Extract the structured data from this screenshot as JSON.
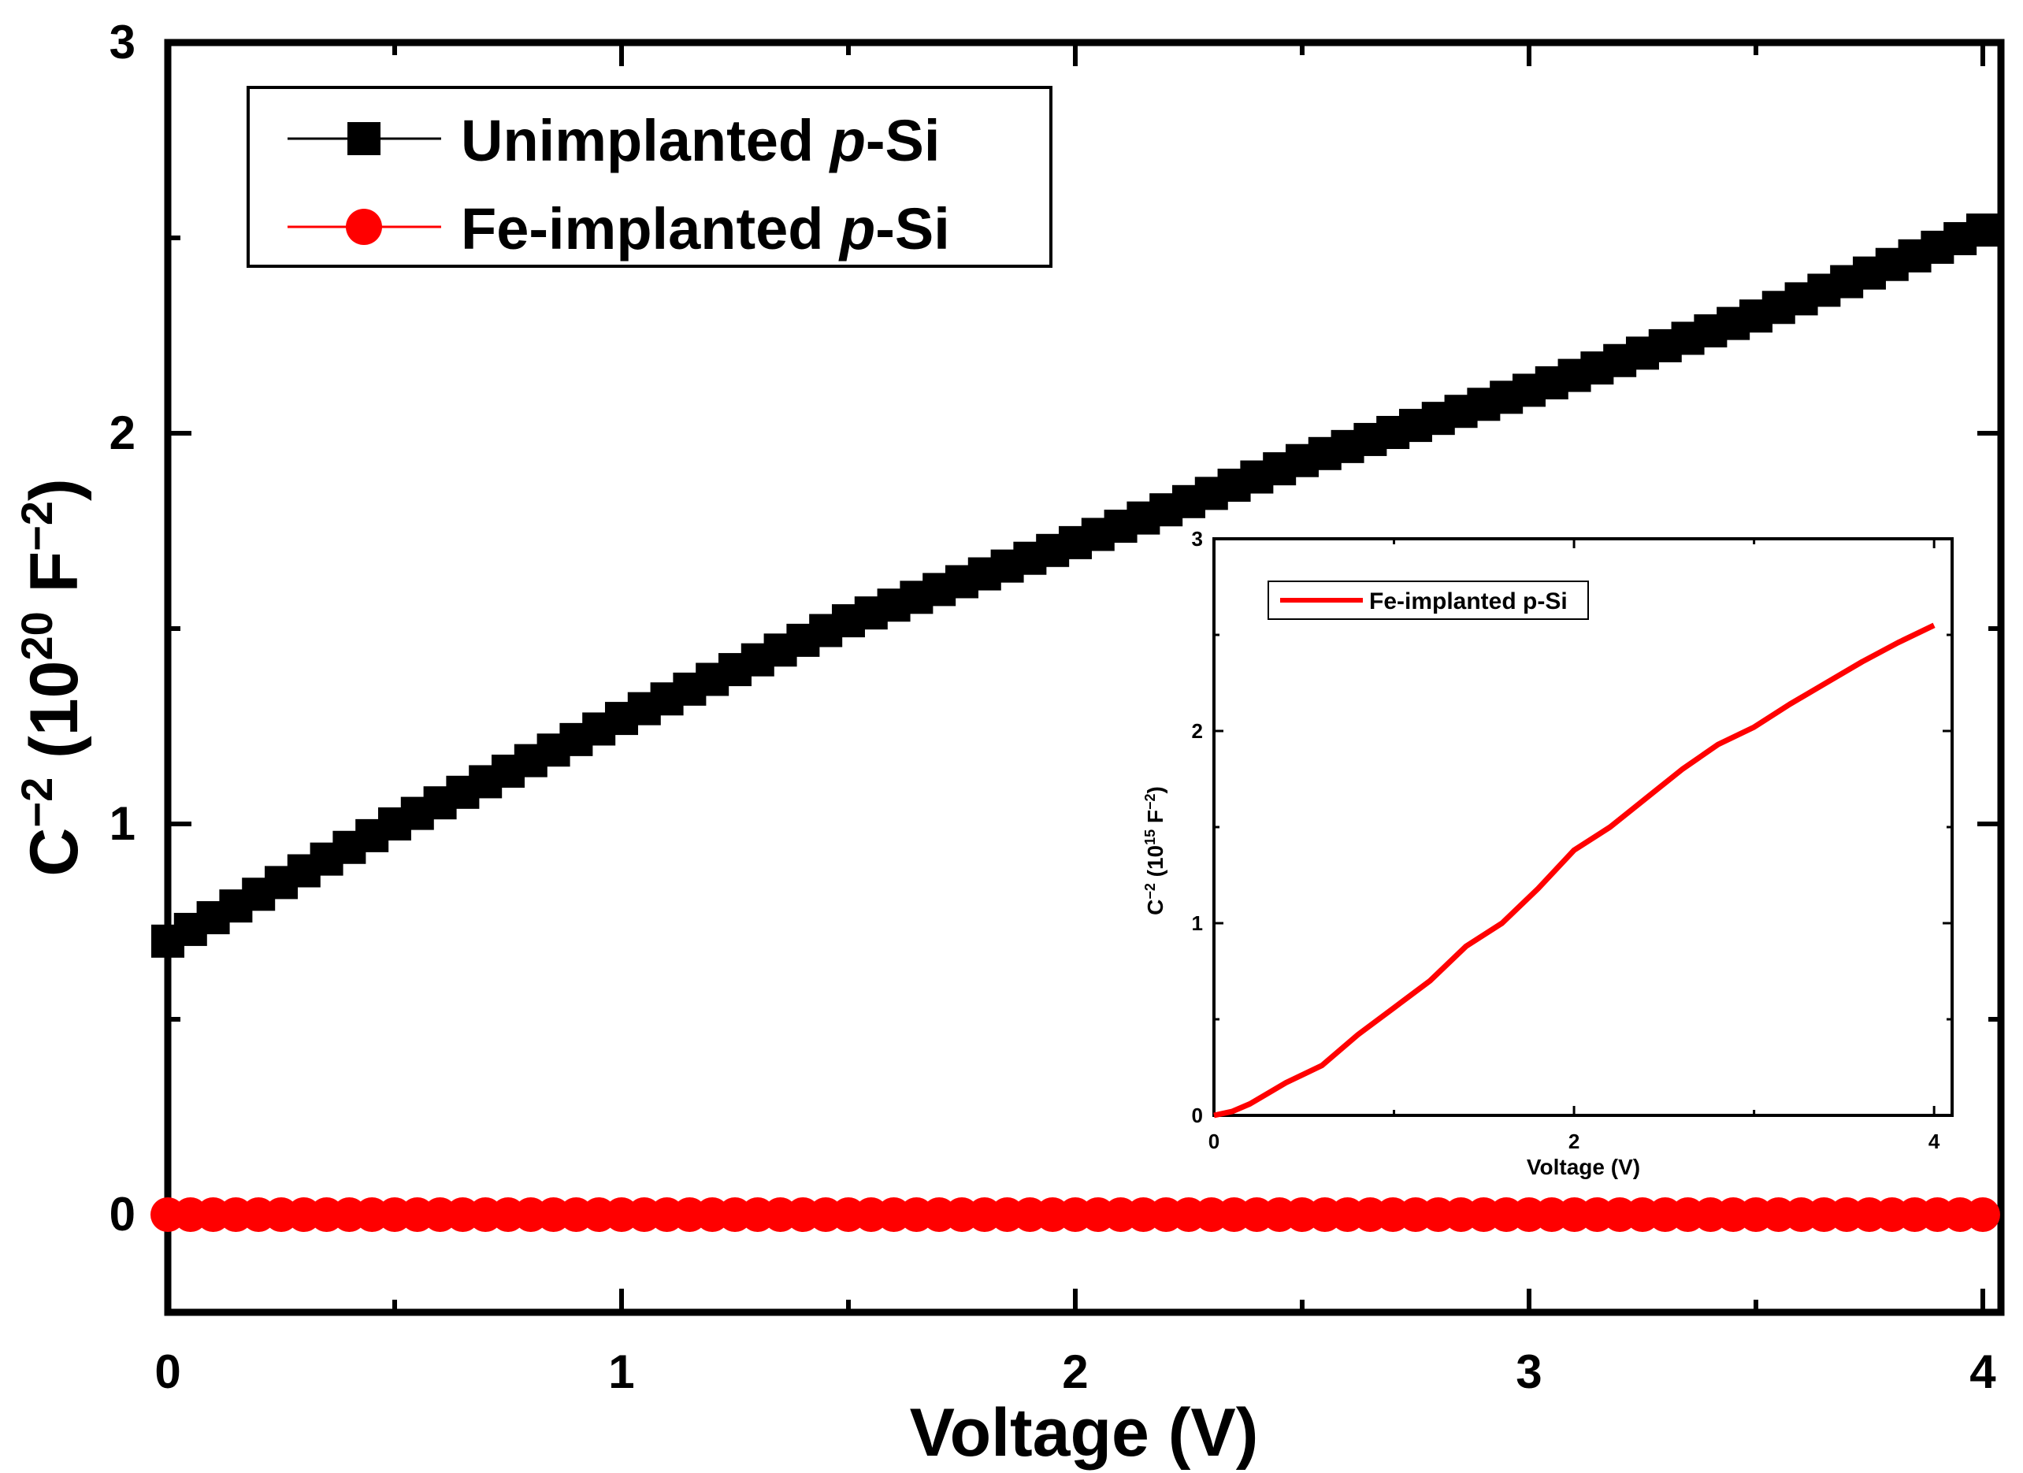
{
  "chart_data": [
    {
      "type": "scatter",
      "role": "main",
      "xlabel": "Voltage (V)",
      "ylabel": {
        "base": "C",
        "exp1": "−2",
        "mid": " (10",
        "exp2": "20",
        "unit": " F",
        "exp3": "−2",
        "close": ")"
      },
      "xlim": [
        0,
        4.04
      ],
      "ylim": [
        -0.25,
        3.0
      ],
      "x_ticks": [
        {
          "value": 0,
          "label": "0"
        },
        {
          "value": 1,
          "label": "1"
        },
        {
          "value": 2,
          "label": "2"
        },
        {
          "value": 3,
          "label": "3"
        },
        {
          "value": 4,
          "label": "4"
        }
      ],
      "y_ticks": [
        {
          "value": 0,
          "label": "0"
        },
        {
          "value": 1,
          "label": "1"
        },
        {
          "value": 2,
          "label": "2"
        },
        {
          "value": 3,
          "label": "3"
        }
      ],
      "legend": [
        {
          "pre": "Unimplanted ",
          "italic": "p",
          "post": "-Si",
          "marker": "square",
          "color": "#000000"
        },
        {
          "pre": "Fe-implanted ",
          "italic": "p",
          "post": "-Si",
          "marker": "circle",
          "color": "#ff0000"
        }
      ],
      "series": [
        {
          "name": "Unimplanted p-Si",
          "color": "#000000",
          "marker": "square",
          "x_start": 0.0,
          "x_step": 0.05,
          "count": 81,
          "curve_points": [
            [
              0.0,
              0.7
            ],
            [
              0.5,
              1.0
            ],
            [
              1.0,
              1.27
            ],
            [
              1.5,
              1.52
            ],
            [
              2.0,
              1.72
            ],
            [
              2.5,
              1.93
            ],
            [
              3.0,
              2.11
            ],
            [
              3.5,
              2.3
            ],
            [
              4.0,
              2.52
            ]
          ]
        },
        {
          "name": "Fe-implanted p-Si",
          "color": "#ff0000",
          "marker": "circle",
          "x_start": 0.0,
          "x_step": 0.05,
          "count": 81,
          "curve_points": [
            [
              0.0,
              0.0
            ],
            [
              4.0,
              0.0
            ]
          ]
        }
      ]
    },
    {
      "type": "line",
      "role": "inset",
      "xlabel": "Voltage (V)",
      "ylabel": {
        "base": "C",
        "exp1": "−2",
        "mid": " (10",
        "exp2": "15",
        "unit": " F",
        "exp3": "−2",
        "close": ")"
      },
      "xlim": [
        0,
        4.1
      ],
      "ylim": [
        0,
        3.0
      ],
      "x_ticks": [
        {
          "value": 0,
          "label": "0"
        },
        {
          "value": 2,
          "label": "2"
        },
        {
          "value": 4,
          "label": "4"
        }
      ],
      "y_ticks": [
        {
          "value": 0,
          "label": "0"
        },
        {
          "value": 1,
          "label": "1"
        },
        {
          "value": 2,
          "label": "2"
        },
        {
          "value": 3,
          "label": "3"
        }
      ],
      "legend": [
        {
          "label": "Fe-implanted p-Si",
          "color": "#ff0000"
        }
      ],
      "series": [
        {
          "name": "Fe-implanted p-Si",
          "color": "#ff0000",
          "points": [
            [
              0.0,
              0.0
            ],
            [
              0.1,
              0.02
            ],
            [
              0.2,
              0.06
            ],
            [
              0.4,
              0.17
            ],
            [
              0.6,
              0.26
            ],
            [
              0.8,
              0.42
            ],
            [
              1.0,
              0.56
            ],
            [
              1.2,
              0.7
            ],
            [
              1.4,
              0.88
            ],
            [
              1.6,
              1.0
            ],
            [
              1.8,
              1.18
            ],
            [
              2.0,
              1.38
            ],
            [
              2.2,
              1.5
            ],
            [
              2.4,
              1.65
            ],
            [
              2.6,
              1.8
            ],
            [
              2.8,
              1.93
            ],
            [
              3.0,
              2.02
            ],
            [
              3.2,
              2.14
            ],
            [
              3.4,
              2.25
            ],
            [
              3.6,
              2.36
            ],
            [
              3.8,
              2.46
            ],
            [
              4.0,
              2.55
            ]
          ]
        }
      ]
    }
  ]
}
